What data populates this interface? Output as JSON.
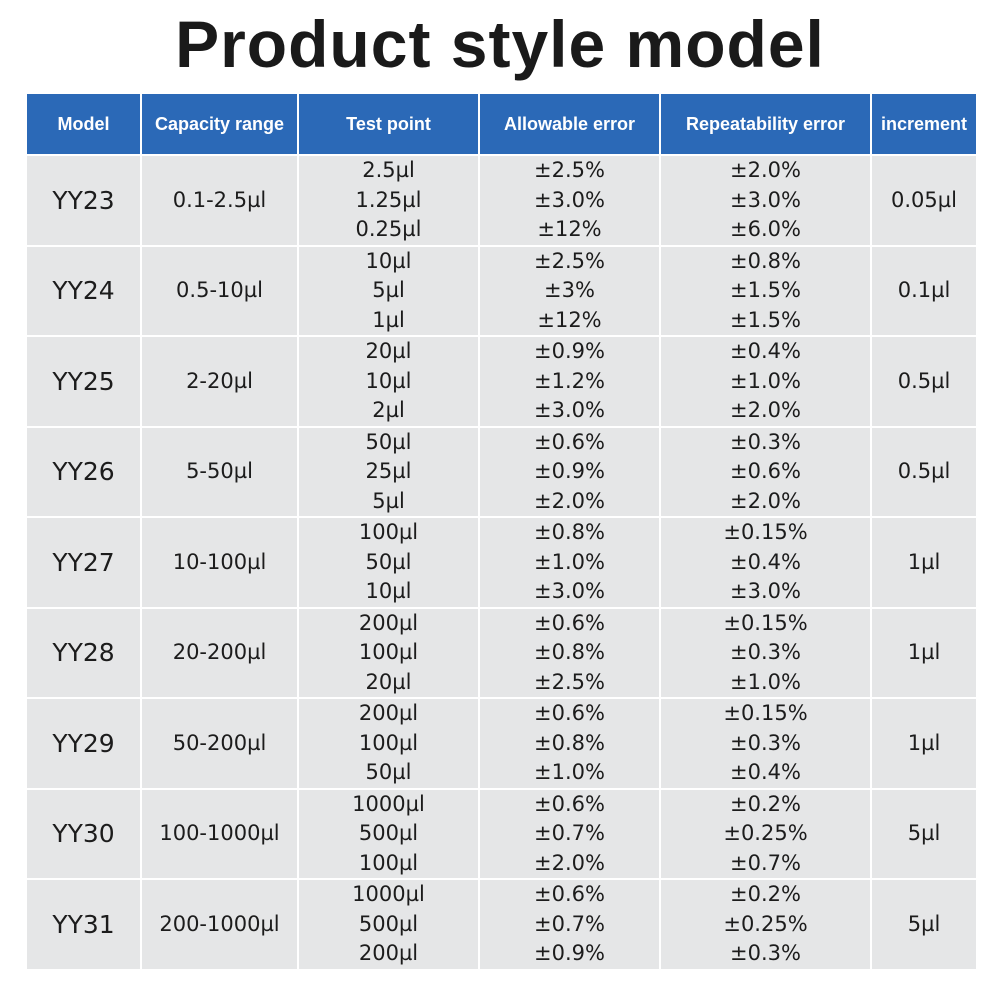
{
  "title": "Product style model",
  "headers": [
    "Model",
    "Capacity range",
    "Test point",
    "Allowable error",
    "Repeatability error",
    "increment"
  ],
  "rows": [
    {
      "model": "YY23",
      "capacity": "0.1-2.5µl",
      "test_points": [
        "2.5µl",
        "1.25µl",
        "0.25µl"
      ],
      "allowable": [
        "±2.5%",
        "±3.0%",
        "±12%"
      ],
      "repeatability": [
        "±2.0%",
        "±3.0%",
        "±6.0%"
      ],
      "increment": "0.05µl"
    },
    {
      "model": "YY24",
      "capacity": "0.5-10µl",
      "test_points": [
        "10µl",
        "5µl",
        "1µl"
      ],
      "allowable": [
        "±2.5%",
        "±3%",
        "±12%"
      ],
      "repeatability": [
        "±0.8%",
        "±1.5%",
        "±1.5%"
      ],
      "increment": "0.1µl"
    },
    {
      "model": "YY25",
      "capacity": "2-20µl",
      "test_points": [
        "20µl",
        "10µl",
        "2µl"
      ],
      "allowable": [
        "±0.9%",
        "±1.2%",
        "±3.0%"
      ],
      "repeatability": [
        "±0.4%",
        "±1.0%",
        "±2.0%"
      ],
      "increment": "0.5µl"
    },
    {
      "model": "YY26",
      "capacity": "5-50µl",
      "test_points": [
        "50µl",
        "25µl",
        "5µl"
      ],
      "allowable": [
        "±0.6%",
        "±0.9%",
        "±2.0%"
      ],
      "repeatability": [
        "±0.3%",
        "±0.6%",
        "±2.0%"
      ],
      "increment": "0.5µl"
    },
    {
      "model": "YY27",
      "capacity": "10-100µl",
      "test_points": [
        "100µl",
        "50µl",
        "10µl"
      ],
      "allowable": [
        "±0.8%",
        "±1.0%",
        "±3.0%"
      ],
      "repeatability": [
        "±0.15%",
        "±0.4%",
        "±3.0%"
      ],
      "increment": "1µl"
    },
    {
      "model": "YY28",
      "capacity": "20-200µl",
      "test_points": [
        "200µl",
        "100µl",
        "20µl"
      ],
      "allowable": [
        "±0.6%",
        "±0.8%",
        "±2.5%"
      ],
      "repeatability": [
        "±0.15%",
        "±0.3%",
        "±1.0%"
      ],
      "increment": "1µl"
    },
    {
      "model": "YY29",
      "capacity": "50-200µl",
      "test_points": [
        "200µl",
        "100µl",
        "50µl"
      ],
      "allowable": [
        "±0.6%",
        "±0.8%",
        "±1.0%"
      ],
      "repeatability": [
        "±0.15%",
        "±0.3%",
        "±0.4%"
      ],
      "increment": "1µl"
    },
    {
      "model": "YY30",
      "capacity": "100-1000µl",
      "test_points": [
        "1000µl",
        "500µl",
        "100µl"
      ],
      "allowable": [
        "±0.6%",
        "±0.7%",
        "±2.0%"
      ],
      "repeatability": [
        "±0.2%",
        "±0.25%",
        "±0.7%"
      ],
      "increment": "5µl"
    },
    {
      "model": "YY31",
      "capacity": "200-1000µl",
      "test_points": [
        "1000µl",
        "500µl",
        "200µl"
      ],
      "allowable": [
        "±0.6%",
        "±0.7%",
        "±0.9%"
      ],
      "repeatability": [
        "±0.2%",
        "±0.25%",
        "±0.3%"
      ],
      "increment": "5µl"
    }
  ]
}
